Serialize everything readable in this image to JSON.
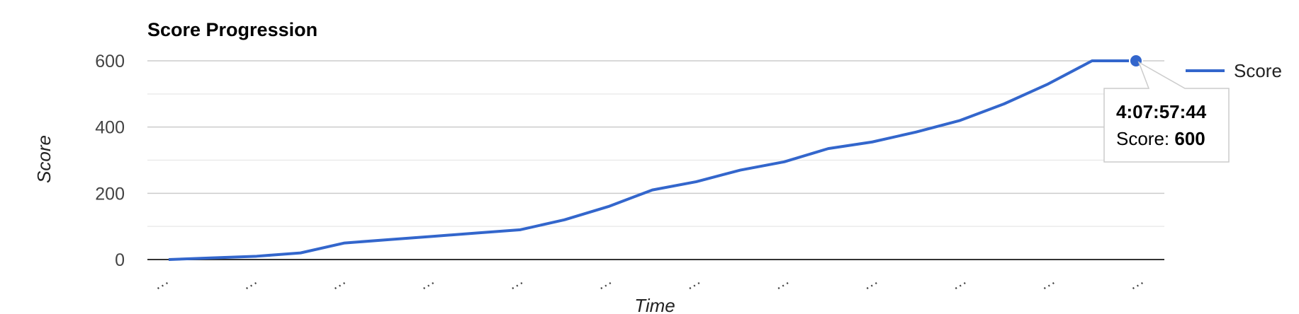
{
  "chart_data": {
    "type": "line",
    "title": "Score Progression",
    "xlabel": "Time",
    "ylabel": "Score",
    "ylim": [
      0,
      600
    ],
    "y_ticks": [
      0,
      200,
      400,
      600
    ],
    "minor_gridlines": true,
    "x_tick_labels": [
      "…",
      "…",
      "…",
      "…",
      "…",
      "…",
      "…",
      "…",
      "…",
      "…",
      "…",
      "…"
    ],
    "legend": "right",
    "series": [
      {
        "name": "Score",
        "color": "#3366cc",
        "values": [
          0,
          5,
          10,
          20,
          50,
          60,
          70,
          80,
          90,
          120,
          160,
          210,
          235,
          270,
          295,
          335,
          355,
          385,
          420,
          470,
          530,
          600,
          600
        ]
      }
    ],
    "tooltip": {
      "time": "4:07:57:44",
      "label": "Score: ",
      "value": "600"
    }
  }
}
